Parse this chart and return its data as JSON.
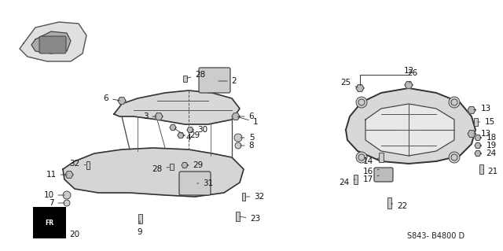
{
  "background_color": "#ffffff",
  "diagram_code": "S843- B4800 D",
  "fig_width": 6.4,
  "fig_height": 3.19,
  "dpi": 100,
  "text_color": "#111111",
  "line_color": "#333333",
  "font_size": 7.5,
  "font_size_code": 7.0
}
